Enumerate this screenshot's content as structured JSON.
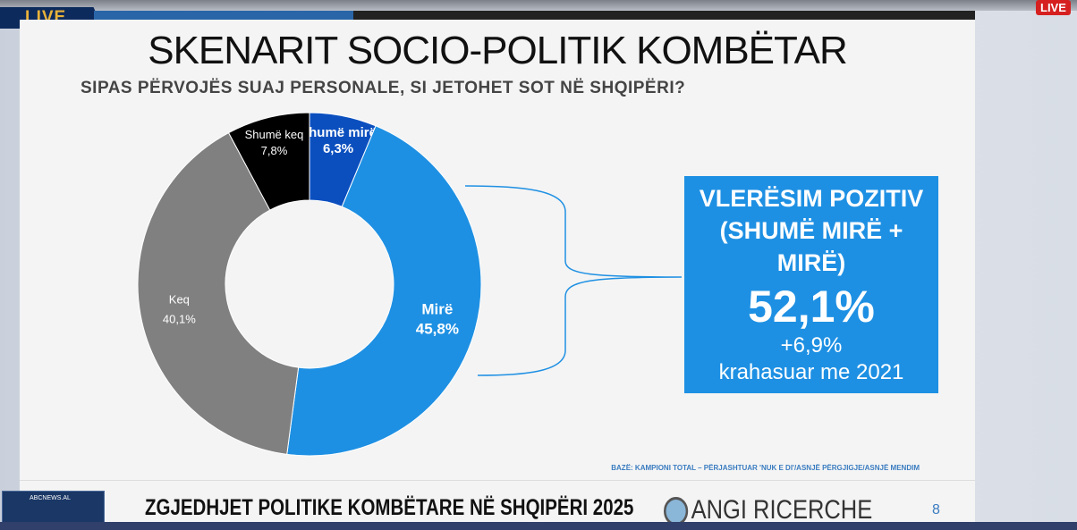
{
  "broadcast": {
    "live_label": "LIVE",
    "live_badge": "LIVE",
    "channel": "ABCNEWS.AL"
  },
  "slide": {
    "title": "SKENARIT SOCIO-POLITIK KOMBËTAR",
    "subtitle": "SIPAS PËRVOJËS SUAJ PERSONALE, SI JETOHET SOT NË SHQIPËRI?",
    "base_note": "BAZË: KAMPIONI TOTAL – PËRJASHTUAR 'NUK E DI'/ASNJË PËRGJIGJE/ASNJË MENDIM"
  },
  "chart_data": {
    "type": "pie",
    "donut": true,
    "start": "top",
    "direction": "clockwise",
    "slices": [
      {
        "label": "Shumë mirë",
        "value": 6.3,
        "text": "6,3%",
        "color": "#0b4fbf"
      },
      {
        "label": "Mirë",
        "value": 45.8,
        "text": "45,8%",
        "color": "#1e90e3"
      },
      {
        "label": "Keq",
        "value": 40.1,
        "text": "40,1%",
        "color": "#808080"
      },
      {
        "label": "Shumë keq",
        "value": 7.8,
        "text": "7,8%",
        "color": "#000000"
      }
    ]
  },
  "callout": {
    "heading_1": "VLERËSIM POZITIV",
    "heading_2": "(SHUMË MIRË +",
    "heading_3": "MIRË)",
    "value": "52,1%",
    "change": "+6,9%",
    "compare": "krahasuar me 2021"
  },
  "footer": {
    "title": "ZGJEDHJET POLITIKE KOMBËTARE NË SHQIPËRI 2025",
    "logo": "ANGI RICERCHE",
    "page": "8"
  }
}
